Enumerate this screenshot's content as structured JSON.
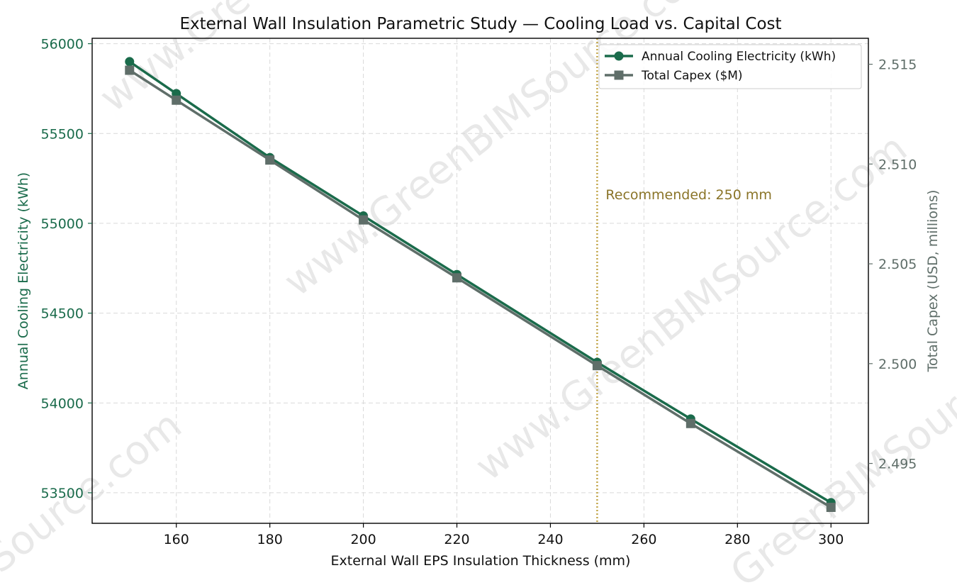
{
  "chart_data": {
    "type": "line",
    "title": "External Wall Insulation Parametric Study — Cooling Load vs. Capital Cost",
    "xlabel": "External Wall EPS Insulation Thickness (mm)",
    "ylabel_left": "Annual Cooling Electricity (kWh)",
    "ylabel_right": "Total Capex (USD, millions)",
    "x": [
      150,
      160,
      180,
      200,
      220,
      250,
      270,
      300
    ],
    "xlim": [
      142,
      308
    ],
    "x_ticks": [
      160,
      180,
      200,
      220,
      240,
      260,
      280,
      300
    ],
    "ylim_left": [
      53330,
      56030
    ],
    "y_ticks_left": [
      53500,
      54000,
      54500,
      55000,
      55500,
      56000
    ],
    "ylim_right": [
      2.492,
      2.5163
    ],
    "y_ticks_right": [
      2.495,
      2.5,
      2.505,
      2.51,
      2.515
    ],
    "grid": true,
    "legend_position": "top-right",
    "series": [
      {
        "name": "Annual Cooling Electricity (kWh)",
        "axis": "left",
        "marker": "circle",
        "color": "#1a6b4b",
        "values": [
          55900,
          55722,
          55366,
          55041,
          54715,
          54226,
          53911,
          53445
        ]
      },
      {
        "name": "Total Capex ($M)",
        "axis": "right",
        "marker": "square",
        "color": "#5f6e69",
        "values": [
          2.5147,
          2.5132,
          2.5102,
          2.5072,
          2.5043,
          2.4999,
          2.497,
          2.4928
        ]
      }
    ],
    "annotation": {
      "x": 250,
      "label": "Recommended: 250 mm",
      "color": "#c2a64a",
      "text_color": "#8a7428"
    },
    "left_axis_color": "#1a6b4b",
    "right_axis_color": "#5f6e69"
  },
  "watermarks": [
    "www.GreenBIMSource.com",
    "www.GreenBIMSource.com",
    "www.GreenBIMSource.com",
    "GreenBIMSource.com",
    "Source.com"
  ]
}
